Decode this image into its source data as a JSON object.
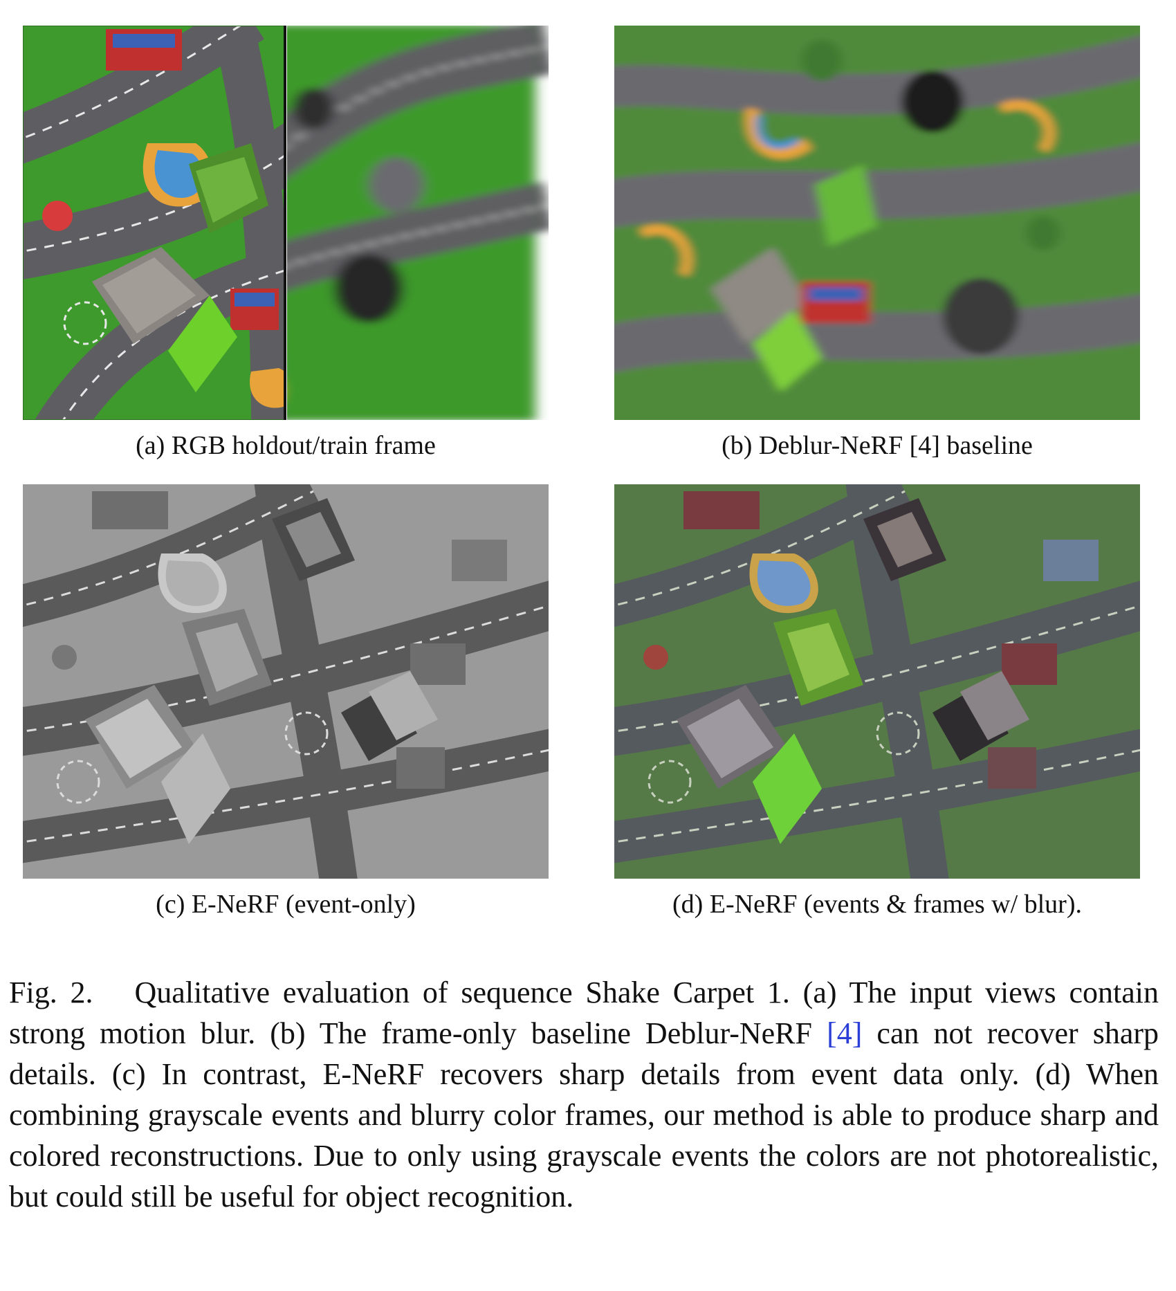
{
  "panels": [
    {
      "id": "a",
      "caption": "(a) RGB holdout/train frame"
    },
    {
      "id": "b",
      "caption": "(b) Deblur-NeRF [4] baseline"
    },
    {
      "id": "c",
      "caption": "(c) E-NeRF (event-only)"
    },
    {
      "id": "d",
      "caption": "(d) E-NeRF (events & frames w/ blur)."
    }
  ],
  "caption": {
    "label": "Fig. 2.",
    "text_1": "Qualitative evaluation of sequence Shake Carpet 1. (a) The input views contain strong motion blur. (b) The frame-only baseline Deblur-NeRF",
    "citation": "[4]",
    "text_2": "can not recover sharp details. (c) In contrast, E-NeRF recovers sharp details from event data only. (d) When combining grayscale events and blurry color frames, our method is able to produce sharp and colored reconstructions. Due to only using grayscale events the colors are not photorealistic, but could still be useful for object recognition."
  },
  "colors": {
    "carpet_green": "#3e9a2c",
    "road_gray": "#5e5e62",
    "citation_blue": "#2b3fd6"
  }
}
